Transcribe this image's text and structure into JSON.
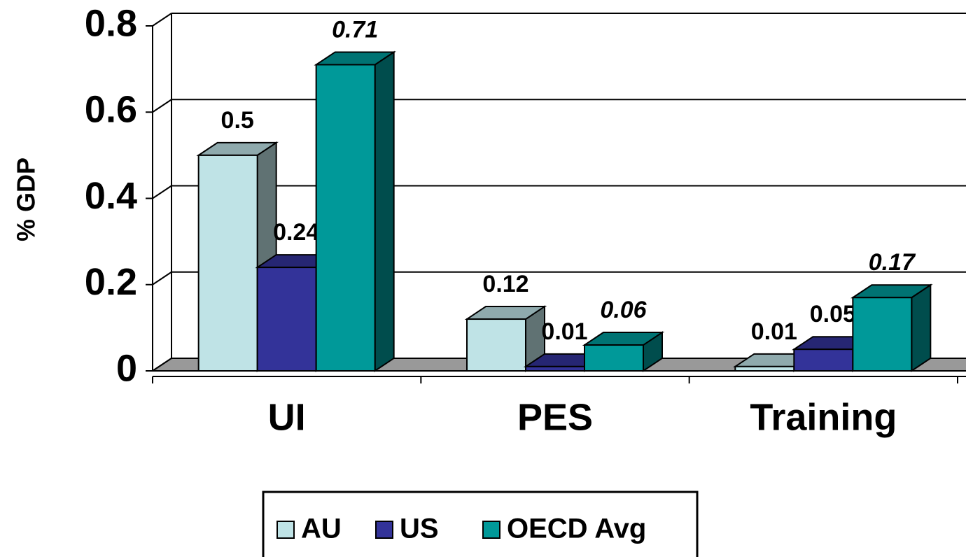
{
  "chart_data": {
    "type": "bar3d",
    "y_label": "% GDP",
    "categories": [
      "UI",
      "PES",
      "Training"
    ],
    "series": [
      {
        "name": "AU",
        "color": "#bfe3e6",
        "values": [
          0.5,
          0.12,
          0.01
        ]
      },
      {
        "name": "US",
        "color": "#333399",
        "values": [
          0.24,
          0.01,
          0.05
        ]
      },
      {
        "name": "OECD Avg",
        "color": "#009999",
        "values": [
          0.71,
          0.06,
          0.17
        ],
        "label_italic": true
      }
    ],
    "ylim": [
      0,
      0.8
    ],
    "yticks": [
      0,
      0.2,
      0.4,
      0.6,
      0.8
    ],
    "grid": true,
    "legend": "bottom"
  }
}
